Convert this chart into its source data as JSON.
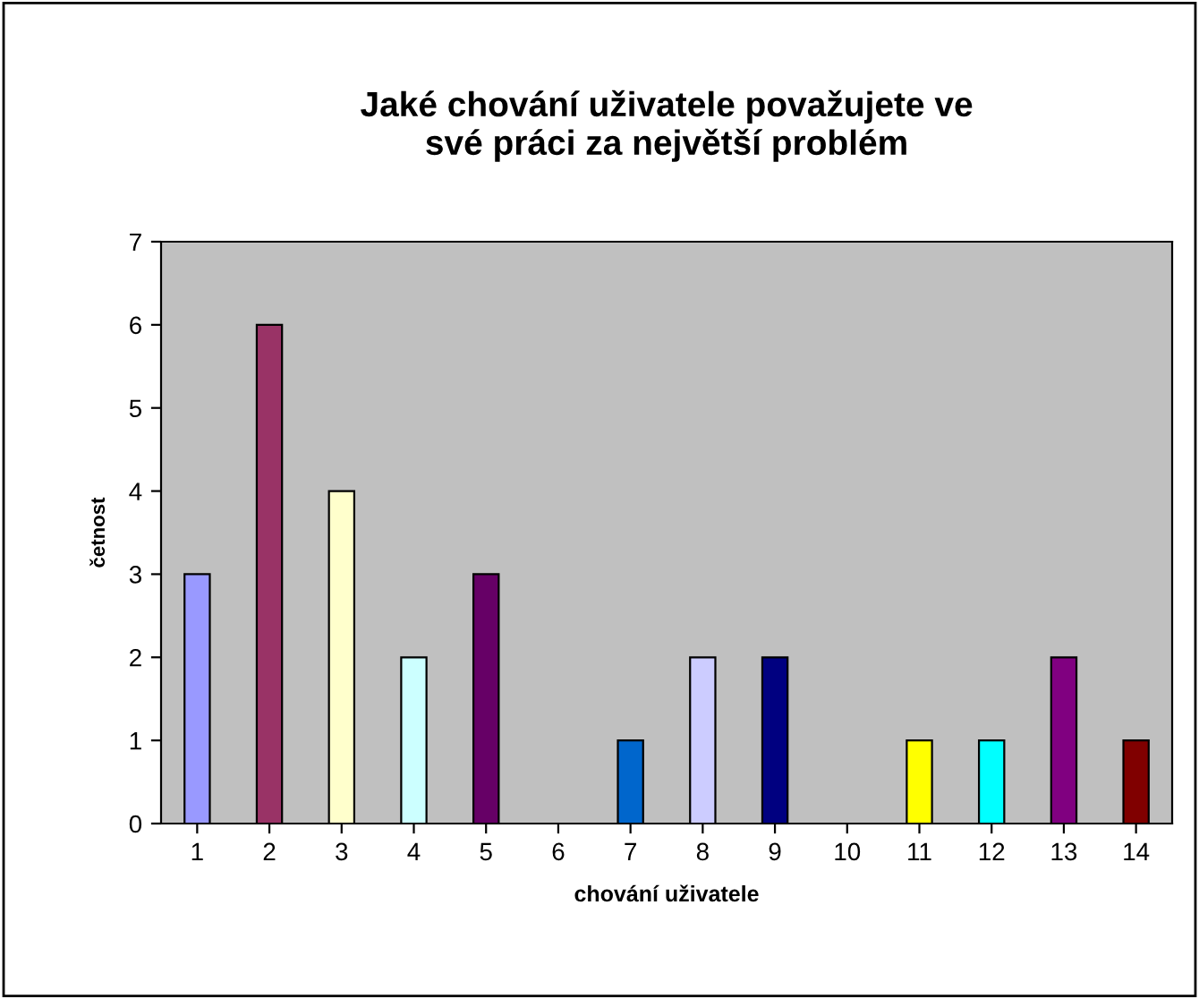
{
  "chart_data": {
    "type": "bar",
    "title": "Jaké chování uživatele považujete ve\nsvé práci za největší problém",
    "xlabel": "chování uživatele",
    "ylabel": "četnost",
    "categories": [
      "1",
      "2",
      "3",
      "4",
      "5",
      "6",
      "7",
      "8",
      "9",
      "10",
      "11",
      "12",
      "13",
      "14"
    ],
    "values": [
      3,
      6,
      4,
      2,
      3,
      0,
      1,
      2,
      2,
      0,
      1,
      1,
      2,
      1
    ],
    "colors": [
      "#9999ff",
      "#993366",
      "#ffffcc",
      "#ccffff",
      "#660066",
      null,
      "#0066cc",
      "#ccccff",
      "#000080",
      null,
      "#ffff00",
      "#00ffff",
      "#800080",
      "#800000"
    ],
    "ylim": [
      0,
      7
    ],
    "yticks": [
      0,
      1,
      2,
      3,
      4,
      5,
      6,
      7
    ],
    "grid": false,
    "legend": false
  }
}
